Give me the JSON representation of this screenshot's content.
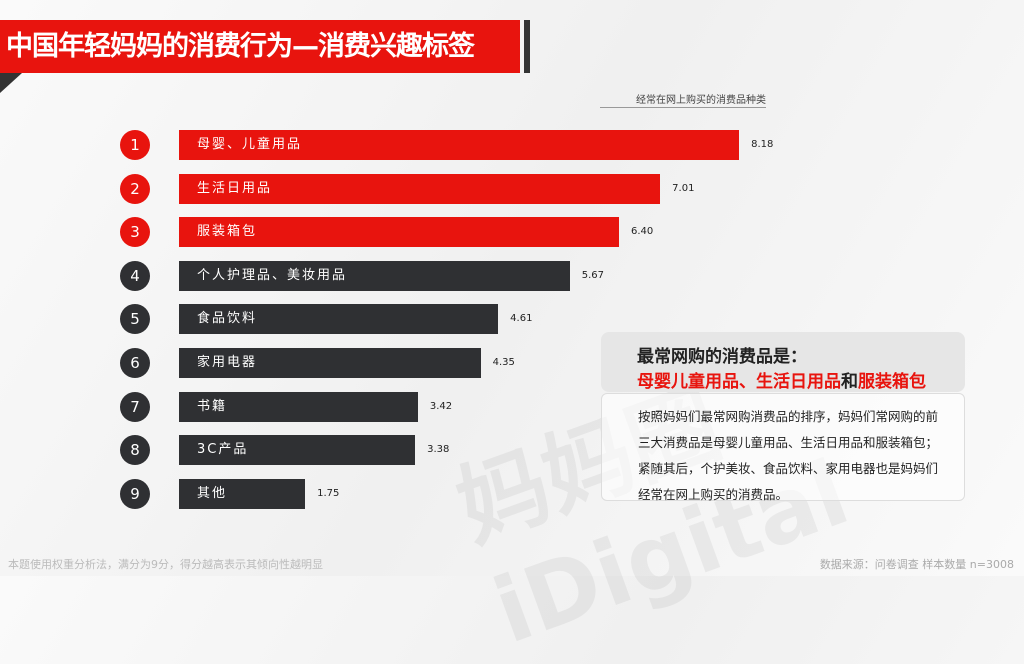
{
  "header": {
    "title": "中国年轻妈妈的消费行为—消费兴趣标签"
  },
  "chart_data": {
    "type": "bar",
    "orientation": "horizontal",
    "title": "经常在网上购买的消费品种类",
    "categories": [
      "母婴、儿童用品",
      "生活日用品",
      "服装箱包",
      "个人护理品、美妆用品",
      "食品饮料",
      "家用电器",
      "书籍",
      "3C产品",
      "其他"
    ],
    "ranks": [
      "1",
      "2",
      "3",
      "4",
      "5",
      "6",
      "7",
      "8",
      "9"
    ],
    "values": [
      8.18,
      7.01,
      6.4,
      5.67,
      4.61,
      4.35,
      3.42,
      3.38,
      1.75
    ],
    "value_labels": [
      "8.18",
      "7.01",
      "6.40",
      "5.67",
      "4.61",
      "4.35",
      "3.42",
      "3.38",
      "1.75"
    ],
    "highlight_count": 3,
    "colors": {
      "highlight": "#e8140e",
      "normal": "#2f3033"
    },
    "xlim": [
      0,
      9
    ]
  },
  "callout": {
    "heading": "最常网购的消费品是：",
    "items_a": "母婴儿童用品、生活日用品",
    "and": "和",
    "items_b": "服装箱包"
  },
  "description": "按照妈妈们最常网购消费品的排序，妈妈们常网购的前三大消费品是母婴儿童用品、生活日用品和服装箱包；紧随其后，个护美妆、食品饮料、家用电器也是妈妈们经常在网上购买的消费品。",
  "footer": {
    "note": "本题使用权重分析法，满分为9分，得分越高表示其倾向性越明显",
    "source": "数据来源：问卷调查 样本数量 n=3008"
  },
  "watermark": "妈妈圈 iDigital"
}
